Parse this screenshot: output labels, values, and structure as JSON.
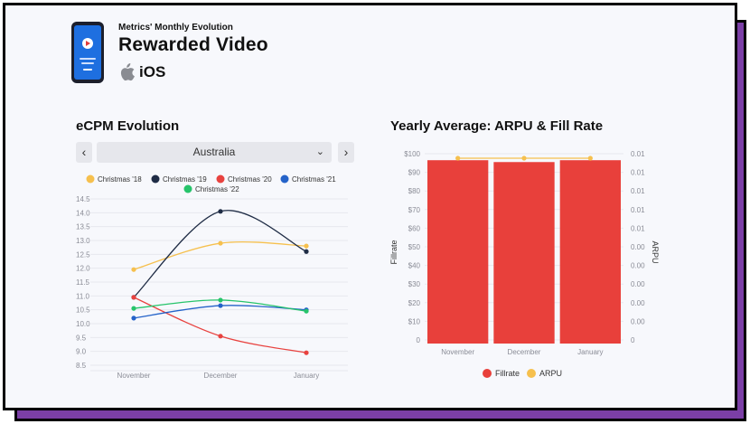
{
  "header": {
    "subtitle": "Metrics' Monthly Evolution",
    "title": "Rewarded Video",
    "platform": "iOS",
    "phone_screen_color": "#1e6fe0"
  },
  "ecpm": {
    "title": "eCPM Evolution",
    "selector": {
      "value": "Australia",
      "prev_icon": "chevron-left-icon",
      "next_icon": "chevron-right-icon"
    }
  },
  "arpu_section": {
    "title": "Yearly Average: ARPU & Fill Rate"
  },
  "chart_data": [
    {
      "type": "line",
      "title": "eCPM Evolution",
      "categories": [
        "November",
        "December",
        "January"
      ],
      "y_ticks": [
        "8.5",
        "9.0",
        "9.5",
        "10.0",
        "10.5",
        "11.0",
        "11.5",
        "12.0",
        "12.5",
        "13.0",
        "13.5",
        "14.0",
        "14.5"
      ],
      "ylim": [
        8.5,
        14.5
      ],
      "grid": "horizontal",
      "legend_position": "top",
      "series": [
        {
          "name": "Christmas '18",
          "color": "#f6c04e",
          "values": [
            11.95,
            12.9,
            12.8
          ]
        },
        {
          "name": "Christmas '19",
          "color": "#1f2c45",
          "values": [
            10.95,
            14.05,
            12.6
          ]
        },
        {
          "name": "Christmas '20",
          "color": "#e8423f",
          "values": [
            10.95,
            9.55,
            8.95
          ]
        },
        {
          "name": "Christmas '21",
          "color": "#2563c9",
          "values": [
            10.2,
            10.65,
            10.5
          ]
        },
        {
          "name": "Christmas '22",
          "color": "#27c46b",
          "values": [
            10.55,
            10.85,
            10.45
          ]
        }
      ]
    },
    {
      "type": "bar",
      "title": "Yearly Average: ARPU & Fill Rate",
      "categories": [
        "November",
        "December",
        "January"
      ],
      "ylabel": "Fillrate",
      "y2label": "ARPU",
      "y_ticks": [
        "0",
        "$10",
        "$20",
        "$30",
        "$40",
        "$50",
        "$60",
        "$70",
        "$80",
        "$90",
        "$100"
      ],
      "y2_ticks": [
        "0",
        "0.00",
        "0.00",
        "0.00",
        "0.00",
        "0.00",
        "0.01",
        "0.01",
        "0.01",
        "0.01",
        "0.01"
      ],
      "ylim": [
        0,
        100
      ],
      "legend_position": "bottom",
      "series": [
        {
          "name": "Fillrate",
          "type": "bar",
          "color": "#e8403b",
          "values": [
            96.5,
            95.5,
            96.5
          ]
        },
        {
          "name": "ARPU",
          "type": "line",
          "color": "#f6c04e",
          "axis": "right",
          "values": [
            0.0098,
            0.0098,
            0.0098
          ]
        }
      ]
    }
  ]
}
